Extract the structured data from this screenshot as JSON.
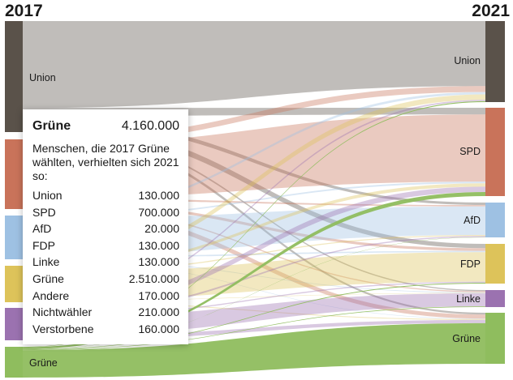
{
  "chart_data": {
    "type": "sankey",
    "year_left": "2017",
    "year_right": "2021",
    "sources": [
      {
        "name": "Union",
        "label": "Union",
        "color": "#5a524a"
      },
      {
        "name": "SPD",
        "label": "",
        "color": "#c9735a"
      },
      {
        "name": "AfD",
        "label": "",
        "color": "#9ec1e3"
      },
      {
        "name": "FDP",
        "label": "",
        "color": "#ddc35a"
      },
      {
        "name": "Linke",
        "label": "",
        "color": "#9b72b0"
      },
      {
        "name": "Grüne",
        "label": "Grüne",
        "color": "#8fbd5e"
      }
    ],
    "targets": [
      {
        "name": "Union",
        "label": "Union",
        "color": "#5a524a"
      },
      {
        "name": "SPD",
        "label": "SPD",
        "color": "#c9735a"
      },
      {
        "name": "AfD",
        "label": "AfD",
        "color": "#9ec1e3"
      },
      {
        "name": "FDP",
        "label": "FDP",
        "color": "#ddc35a"
      },
      {
        "name": "Linke",
        "label": "Linke",
        "color": "#9b72b0"
      },
      {
        "name": "Grüne",
        "label": "Grüne",
        "color": "#8fbd5e"
      }
    ],
    "highlight_source": "Grüne",
    "tooltip": {
      "party": "Grüne",
      "total": "4.160.000",
      "description": "Menschen, die 2017 Grüne wählten, verhielten sich 2021 so:",
      "rows": [
        {
          "label": "Union",
          "value": "130.000"
        },
        {
          "label": "SPD",
          "value": "700.000"
        },
        {
          "label": "AfD",
          "value": "20.000"
        },
        {
          "label": "FDP",
          "value": "130.000"
        },
        {
          "label": "Linke",
          "value": "130.000"
        },
        {
          "label": "Grüne",
          "value": "2.510.000"
        },
        {
          "label": "Andere",
          "value": "170.000"
        },
        {
          "label": "Nichtwähler",
          "value": "210.000"
        },
        {
          "label": "Verstorbene",
          "value": "160.000"
        }
      ]
    }
  }
}
